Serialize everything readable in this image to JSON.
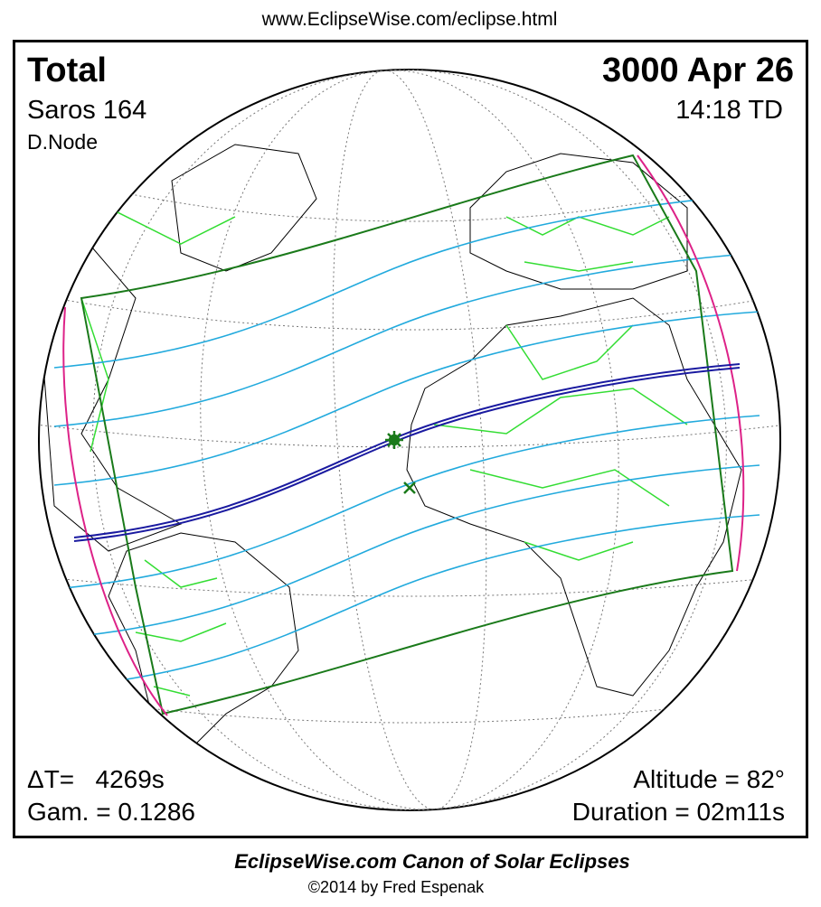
{
  "header": {
    "url": "www.EclipseWise.com/eclipse.html"
  },
  "panel": {
    "top_left": {
      "type": "Total",
      "saros": "Saros 164",
      "node": "D.Node"
    },
    "top_right": {
      "date": "3000 Apr 26",
      "time": "14:18 TD"
    },
    "bottom_left": {
      "delta_t": "ΔT=   4269s",
      "gamma": "Gam. = 0.1286"
    },
    "bottom_right": {
      "altitude": "Altitude = 82°",
      "duration": "Duration = 02m11s"
    }
  },
  "footer": {
    "title": "EclipseWise.com Canon of Solar Eclipses",
    "credit": "©2014 by Fred Espenak"
  }
}
